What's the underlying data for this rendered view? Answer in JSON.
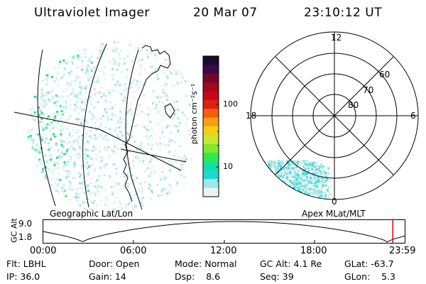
{
  "header": {
    "instrument": "Ultraviolet Imager",
    "date": "20 Mar 07",
    "time": "23:10:12 UT"
  },
  "left_panel": {
    "caption": "Geographic Lat/Lon"
  },
  "right_panel": {
    "caption": "Apex MLat/MLT",
    "mlt_labels": {
      "top": "12",
      "left": "18",
      "right": "6",
      "bottom": "0"
    },
    "mlat_labels": [
      "60",
      "70",
      "80"
    ]
  },
  "colorbar": {
    "label": "photon cm⁻²s⁻¹",
    "ticks": [
      "100",
      "10"
    ],
    "colors": [
      "#1a0a2e",
      "#3a0a4a",
      "#70082e",
      "#a0081e",
      "#c80818",
      "#e02010",
      "#f06010",
      "#f8a010",
      "#f0d010",
      "#c8e830",
      "#80e830",
      "#30e850",
      "#10e0a0",
      "#20d8d0",
      "#a0e8e8",
      "#e8f4f4"
    ]
  },
  "altitude_plot": {
    "ylabel": "GC Alt",
    "yticks": [
      "9.0",
      "1.8"
    ],
    "xticks": [
      "00:00",
      "06:00",
      "12:00",
      "18:00",
      "23:59"
    ],
    "marker_time": "23:10",
    "marker_color": "#e00000"
  },
  "info": {
    "flt_label": "Flt:",
    "flt_value": "LBHL",
    "ip_label": "IP:",
    "ip_value": "36.0",
    "door_label": "Door:",
    "door_value": "Open",
    "gain_label": "Gain:",
    "gain_value": "14",
    "mode_label": "Mode:",
    "mode_value": "Normal",
    "dsp_label": "Dsp:",
    "dsp_value": "8.6",
    "gcalt_label": "GC Alt:",
    "gcalt_value": "4.1 Re",
    "seq_label": "Seq:",
    "seq_value": "39",
    "glat_label": "GLat:",
    "glat_value": "-63.7",
    "glon_label": "GLon:",
    "glon_value": "5.3"
  }
}
